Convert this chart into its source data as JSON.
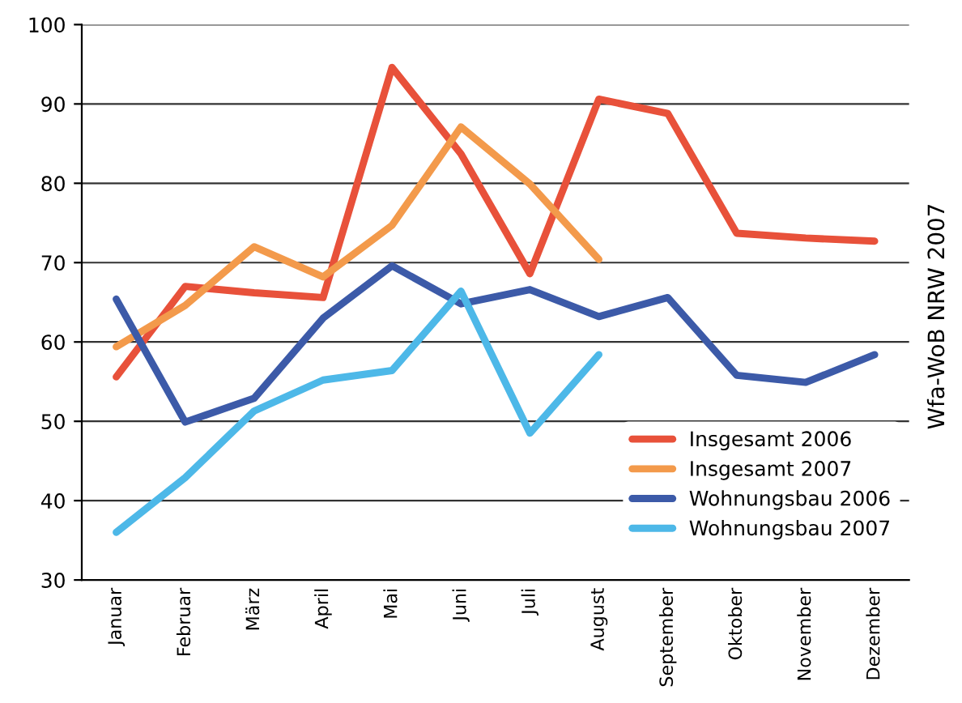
{
  "chart_data": {
    "type": "line",
    "categories": [
      "Januar",
      "Februar",
      "März",
      "April",
      "Mai",
      "Juni",
      "Juli",
      "August",
      "September",
      "Oktober",
      "November",
      "Dezember"
    ],
    "series": [
      {
        "name": "Insgesamt 2006",
        "color": "#e8513a",
        "values": [
          55.6,
          67.0,
          66.2,
          65.6,
          94.6,
          83.7,
          68.6,
          90.6,
          88.8,
          73.7,
          73.1,
          72.7
        ]
      },
      {
        "name": "Insgesamt 2007",
        "color": "#f39a4b",
        "values": [
          59.4,
          64.6,
          72.0,
          68.2,
          74.7,
          87.1,
          79.9,
          70.4,
          null,
          null,
          null,
          null
        ]
      },
      {
        "name": "Wohnungsbau 2006",
        "color": "#3c5aa8",
        "values": [
          65.4,
          49.9,
          52.9,
          63.0,
          69.6,
          64.8,
          66.6,
          63.2,
          65.6,
          55.8,
          54.9,
          58.4
        ]
      },
      {
        "name": "Wohnungsbau 2007",
        "color": "#4db8e8",
        "values": [
          36.0,
          42.9,
          51.3,
          55.2,
          56.4,
          66.4,
          48.5,
          58.4,
          null,
          null,
          null,
          null
        ]
      }
    ],
    "ylim": [
      30,
      100
    ],
    "yticks": [
      30,
      40,
      50,
      60,
      70,
      80,
      90,
      100
    ],
    "grid": "y",
    "legend": "lower right",
    "marker": "none",
    "line_style": "solid",
    "annotations": [
      "Wfa-WoB NRW 2007"
    ]
  }
}
